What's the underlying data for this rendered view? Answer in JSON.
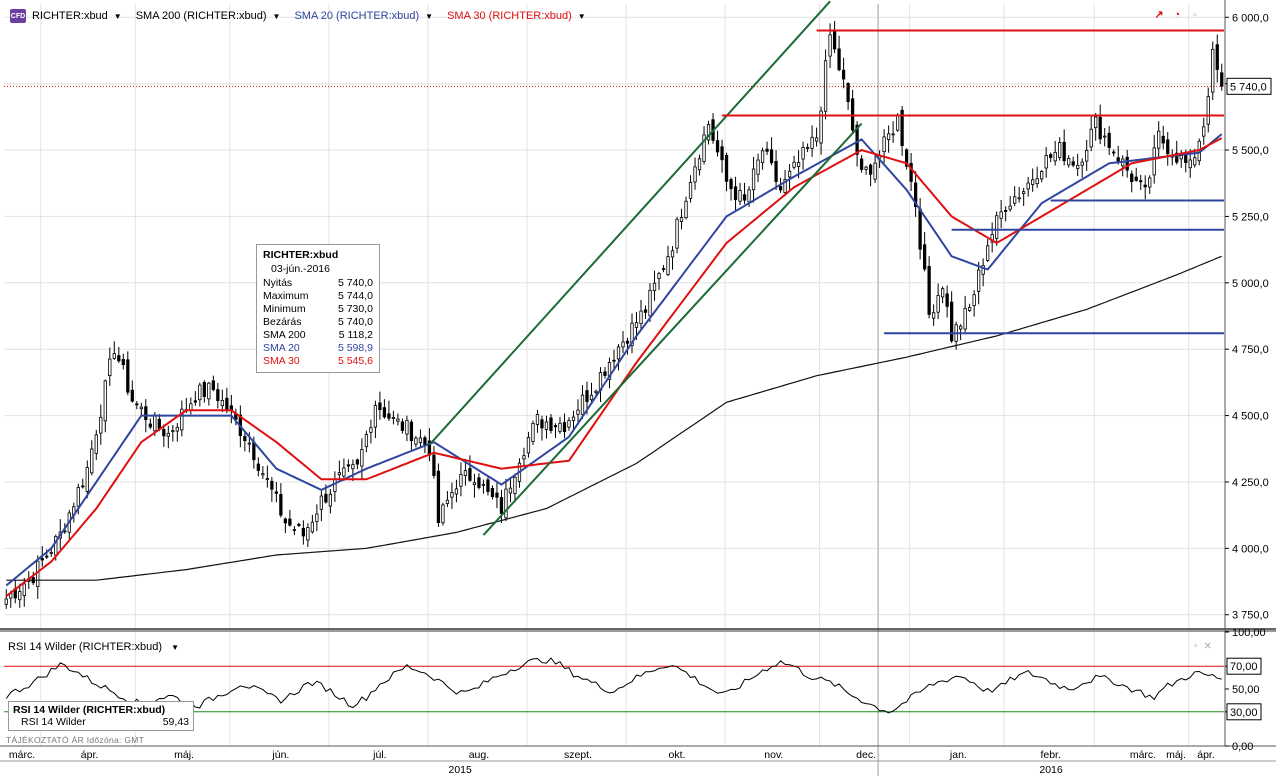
{
  "legend": [
    {
      "label": "RICHTER:xbud",
      "color": "#000000"
    },
    {
      "label": "SMA 200 (RICHTER:xbud)",
      "color": "#000000"
    },
    {
      "label": "SMA 20 (RICHTER:xbud)",
      "color": "#2e46a0"
    },
    {
      "label": "SMA 30 (RICHTER:xbud)",
      "color": "#e01010"
    }
  ],
  "badge": "CFD",
  "info_box": {
    "title": "RICHTER:xbud",
    "date": "03-jún.-2016",
    "rows": [
      {
        "label": "Nyitás",
        "value": "5 740,0",
        "color": "#000000"
      },
      {
        "label": "Maximum",
        "value": "5 744,0",
        "color": "#000000"
      },
      {
        "label": "Minimum",
        "value": "5 730,0",
        "color": "#000000"
      },
      {
        "label": "Bezárás",
        "value": "5 740,0",
        "color": "#000000"
      },
      {
        "label": "SMA 200",
        "value": "5 118,2",
        "color": "#000000"
      },
      {
        "label": "SMA 20",
        "value": "5 598,9",
        "color": "#2e46a0"
      },
      {
        "label": "SMA 30",
        "value": "5 545,6",
        "color": "#e01010"
      }
    ]
  },
  "rsi_panel": {
    "header": "RSI 14 Wilder (RICHTER:xbud)",
    "box_title": "RSI 14 Wilder (RICHTER:xbud)",
    "box_label": "RSI 14 Wilder",
    "box_value": "59,43"
  },
  "footnote": "TÁJÉKOZTATÓ ÁR   Időzóna: GMT",
  "icons": [
    "cfd-badge",
    "pin-icon",
    "clock-icon",
    "maximize-icon",
    "close-icon"
  ],
  "colors": {
    "price": "#000000",
    "sma200": "#111111",
    "sma20": "#2e46a0",
    "sma30": "#e01010",
    "trend": "#1a6b35",
    "level_red": "#e01010",
    "level_blue": "#2e46a0",
    "grid": "#e2e2e2",
    "rsi_upper": "#e01010",
    "rsi_lower": "#1a8a1a"
  },
  "chart_data": [
    {
      "type": "candlestick",
      "title": "RICHTER:xbud",
      "ylim": [
        3700,
        6050
      ],
      "yticks": [
        "3 750,0",
        "4 000,0",
        "4 250,0",
        "4 500,0",
        "4 750,0",
        "5 000,0",
        "5 250,0",
        "5 500,0",
        "5 750,0",
        "6 000,0"
      ],
      "ytick_values": [
        3750,
        4000,
        4250,
        4500,
        4750,
        5000,
        5250,
        5500,
        5750,
        6000
      ],
      "last_price_label": "5 740,0",
      "last_price": 5740,
      "x_months": [
        "márc.",
        "ápr.",
        "máj.",
        "jún.",
        "júl.",
        "aug.",
        "szept.",
        "okt.",
        "nov.",
        "dec.",
        "jan.",
        "febr.",
        "márc.",
        "ápr.",
        "máj."
      ],
      "x_years": [
        "2015",
        "2016"
      ],
      "close_path": [
        {
          "x": 0,
          "y": 3810
        },
        {
          "x": 6,
          "y": 3900
        },
        {
          "x": 12,
          "y": 4050
        },
        {
          "x": 18,
          "y": 4300
        },
        {
          "x": 22,
          "y": 4600
        },
        {
          "x": 24,
          "y": 4760
        },
        {
          "x": 28,
          "y": 4560
        },
        {
          "x": 32,
          "y": 4480
        },
        {
          "x": 36,
          "y": 4430
        },
        {
          "x": 42,
          "y": 4580
        },
        {
          "x": 46,
          "y": 4600
        },
        {
          "x": 50,
          "y": 4500
        },
        {
          "x": 54,
          "y": 4400
        },
        {
          "x": 58,
          "y": 4250
        },
        {
          "x": 62,
          "y": 4100
        },
        {
          "x": 66,
          "y": 4050
        },
        {
          "x": 70,
          "y": 4180
        },
        {
          "x": 74,
          "y": 4260
        },
        {
          "x": 78,
          "y": 4300
        },
        {
          "x": 82,
          "y": 4550
        },
        {
          "x": 86,
          "y": 4480
        },
        {
          "x": 90,
          "y": 4440
        },
        {
          "x": 94,
          "y": 4380
        },
        {
          "x": 96,
          "y": 4100
        },
        {
          "x": 100,
          "y": 4250
        },
        {
          "x": 104,
          "y": 4280
        },
        {
          "x": 107,
          "y": 4200
        },
        {
          "x": 110,
          "y": 4150
        },
        {
          "x": 114,
          "y": 4350
        },
        {
          "x": 118,
          "y": 4480
        },
        {
          "x": 124,
          "y": 4470
        },
        {
          "x": 130,
          "y": 4600
        },
        {
          "x": 136,
          "y": 4760
        },
        {
          "x": 142,
          "y": 4900
        },
        {
          "x": 148,
          "y": 5150
        },
        {
          "x": 152,
          "y": 5400
        },
        {
          "x": 156,
          "y": 5600
        },
        {
          "x": 160,
          "y": 5380
        },
        {
          "x": 164,
          "y": 5300
        },
        {
          "x": 168,
          "y": 5500
        },
        {
          "x": 172,
          "y": 5350
        },
        {
          "x": 176,
          "y": 5450
        },
        {
          "x": 180,
          "y": 5550
        },
        {
          "x": 183,
          "y": 5930
        },
        {
          "x": 186,
          "y": 5750
        },
        {
          "x": 190,
          "y": 5400
        },
        {
          "x": 194,
          "y": 5480
        },
        {
          "x": 198,
          "y": 5620
        },
        {
          "x": 202,
          "y": 5300
        },
        {
          "x": 205,
          "y": 4880
        },
        {
          "x": 208,
          "y": 5000
        },
        {
          "x": 210,
          "y": 4800
        },
        {
          "x": 214,
          "y": 4900
        },
        {
          "x": 218,
          "y": 5150
        },
        {
          "x": 222,
          "y": 5300
        },
        {
          "x": 226,
          "y": 5350
        },
        {
          "x": 230,
          "y": 5450
        },
        {
          "x": 234,
          "y": 5500
        },
        {
          "x": 238,
          "y": 5450
        },
        {
          "x": 242,
          "y": 5600
        },
        {
          "x": 246,
          "y": 5500
        },
        {
          "x": 250,
          "y": 5400
        },
        {
          "x": 253,
          "y": 5330
        },
        {
          "x": 256,
          "y": 5550
        },
        {
          "x": 260,
          "y": 5480
        },
        {
          "x": 263,
          "y": 5430
        },
        {
          "x": 266,
          "y": 5600
        },
        {
          "x": 268,
          "y": 5850
        },
        {
          "x": 270,
          "y": 5740
        }
      ],
      "sma200": [
        {
          "x": 0,
          "y": 3880
        },
        {
          "x": 20,
          "y": 3880
        },
        {
          "x": 40,
          "y": 3920
        },
        {
          "x": 60,
          "y": 3975
        },
        {
          "x": 80,
          "y": 4000
        },
        {
          "x": 100,
          "y": 4060
        },
        {
          "x": 120,
          "y": 4150
        },
        {
          "x": 140,
          "y": 4320
        },
        {
          "x": 160,
          "y": 4550
        },
        {
          "x": 180,
          "y": 4650
        },
        {
          "x": 200,
          "y": 4720
        },
        {
          "x": 220,
          "y": 4800
        },
        {
          "x": 240,
          "y": 4900
        },
        {
          "x": 260,
          "y": 5030
        },
        {
          "x": 270,
          "y": 5100
        }
      ],
      "sma20": [
        {
          "x": 0,
          "y": 3860
        },
        {
          "x": 10,
          "y": 4000
        },
        {
          "x": 20,
          "y": 4250
        },
        {
          "x": 30,
          "y": 4500
        },
        {
          "x": 40,
          "y": 4500
        },
        {
          "x": 50,
          "y": 4500
        },
        {
          "x": 60,
          "y": 4300
        },
        {
          "x": 70,
          "y": 4220
        },
        {
          "x": 80,
          "y": 4300
        },
        {
          "x": 95,
          "y": 4400
        },
        {
          "x": 110,
          "y": 4240
        },
        {
          "x": 125,
          "y": 4420
        },
        {
          "x": 140,
          "y": 4800
        },
        {
          "x": 160,
          "y": 5250
        },
        {
          "x": 175,
          "y": 5400
        },
        {
          "x": 190,
          "y": 5540
        },
        {
          "x": 200,
          "y": 5350
        },
        {
          "x": 210,
          "y": 5100
        },
        {
          "x": 218,
          "y": 5050
        },
        {
          "x": 230,
          "y": 5300
        },
        {
          "x": 245,
          "y": 5450
        },
        {
          "x": 255,
          "y": 5470
        },
        {
          "x": 265,
          "y": 5490
        },
        {
          "x": 270,
          "y": 5560
        }
      ],
      "sma30": [
        {
          "x": 0,
          "y": 3820
        },
        {
          "x": 10,
          "y": 3950
        },
        {
          "x": 20,
          "y": 4150
        },
        {
          "x": 30,
          "y": 4400
        },
        {
          "x": 40,
          "y": 4520
        },
        {
          "x": 50,
          "y": 4520
        },
        {
          "x": 60,
          "y": 4400
        },
        {
          "x": 70,
          "y": 4260
        },
        {
          "x": 80,
          "y": 4260
        },
        {
          "x": 95,
          "y": 4360
        },
        {
          "x": 110,
          "y": 4300
        },
        {
          "x": 125,
          "y": 4330
        },
        {
          "x": 140,
          "y": 4700
        },
        {
          "x": 160,
          "y": 5150
        },
        {
          "x": 175,
          "y": 5360
        },
        {
          "x": 190,
          "y": 5500
        },
        {
          "x": 200,
          "y": 5450
        },
        {
          "x": 210,
          "y": 5250
        },
        {
          "x": 220,
          "y": 5150
        },
        {
          "x": 235,
          "y": 5300
        },
        {
          "x": 250,
          "y": 5450
        },
        {
          "x": 265,
          "y": 5500
        },
        {
          "x": 270,
          "y": 5545
        }
      ],
      "horizontal_levels": [
        {
          "value": 5950,
          "from_x": 180,
          "to_x": 270,
          "color": "#e01010"
        },
        {
          "value": 5630,
          "from_x": 159,
          "to_x": 270,
          "color": "#e01010"
        },
        {
          "value": 5310,
          "from_x": 232,
          "to_x": 270,
          "color": "#2e46a0"
        },
        {
          "value": 5200,
          "from_x": 210,
          "to_x": 270,
          "color": "#2e46a0"
        },
        {
          "value": 4810,
          "from_x": 195,
          "to_x": 270,
          "color": "#2e46a0"
        }
      ],
      "trendlines": [
        {
          "x1": 94,
          "y1": 4390,
          "x2": 183,
          "y2": 6060,
          "color": "#1a6b35"
        },
        {
          "x1": 106,
          "y1": 4050,
          "x2": 190,
          "y2": 5600,
          "color": "#1a6b35"
        }
      ]
    },
    {
      "type": "line",
      "title": "RSI 14 Wilder (RICHTER:xbud)",
      "ylim": [
        0,
        100
      ],
      "yticks": [
        "0,00",
        "30,00",
        "50,00",
        "70,00",
        "100,00"
      ],
      "ytick_values": [
        0,
        30,
        50,
        70,
        100
      ],
      "levels": [
        30,
        70
      ],
      "values": [
        44,
        50,
        56,
        64,
        72,
        66,
        58,
        52,
        46,
        40,
        36,
        42,
        44,
        38,
        36,
        42,
        48,
        55,
        50,
        44,
        40,
        48,
        56,
        52,
        44,
        36,
        42,
        54,
        62,
        70,
        66,
        60,
        52,
        46,
        50,
        58,
        64,
        70,
        74,
        76,
        72,
        64,
        58,
        52,
        48,
        56,
        62,
        68,
        72,
        66,
        58,
        50,
        44,
        52,
        60,
        68,
        74,
        70,
        62,
        58,
        54,
        46,
        40,
        34,
        30,
        38,
        46,
        54,
        58,
        62,
        56,
        48,
        52,
        60,
        64,
        60,
        54,
        50,
        56,
        60,
        58,
        52,
        48,
        42,
        52,
        58,
        64,
        62,
        59
      ]
    }
  ]
}
